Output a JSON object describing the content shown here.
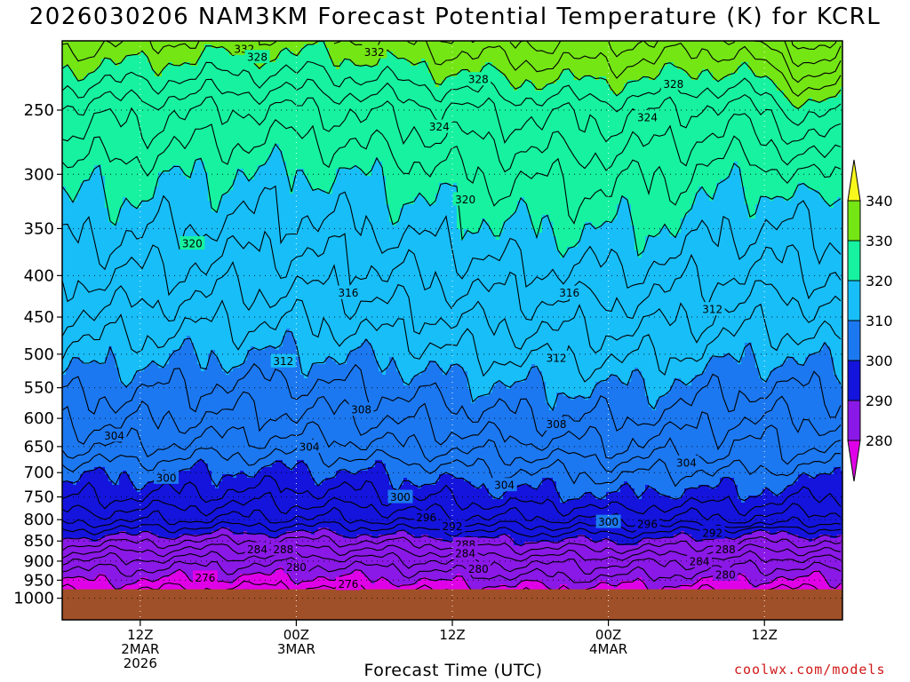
{
  "chart_data": {
    "type": "contour",
    "title": "2026030206 NAM3KM Forecast Potential Temperature (K) for KCRL",
    "xlabel": "Forecast Time (UTC)",
    "ylabel": "",
    "credit": "coolwx.com/models",
    "y_axis": {
      "scale": "log-pressure",
      "inverted": true,
      "range": [
        1000,
        200
      ],
      "ticks": [
        "250",
        "300",
        "350",
        "400",
        "450",
        "500",
        "550",
        "600",
        "650",
        "700",
        "750",
        "800",
        "850",
        "900",
        "950",
        "1000"
      ],
      "grid": "dotted"
    },
    "x_axis": {
      "range": [
        "2026-03-02T06Z",
        "2026-03-04T18Z"
      ],
      "ticks": [
        {
          "hour": 6,
          "lines": [
            "12Z",
            "2MAR",
            "2026"
          ]
        },
        {
          "hour": 18,
          "lines": [
            "00Z",
            "3MAR"
          ]
        },
        {
          "hour": 30,
          "lines": [
            "12Z"
          ]
        },
        {
          "hour": 42,
          "lines": [
            "00Z",
            "4MAR"
          ]
        },
        {
          "hour": 54,
          "lines": [
            "12Z"
          ]
        }
      ],
      "grid": "dotted"
    },
    "colorbar": {
      "ticks": [
        "280",
        "290",
        "300",
        "310",
        "320",
        "330",
        "340"
      ],
      "bands": [
        {
          "range": "<280",
          "color": "#e000e8"
        },
        {
          "range": "280-290",
          "color": "#8a18e6"
        },
        {
          "range": "290-300",
          "color": "#1414dc"
        },
        {
          "range": "300-310",
          "color": "#1c78f0"
        },
        {
          "range": "310-320",
          "color": "#18bef8"
        },
        {
          "range": "320-330",
          "color": "#16f2a0"
        },
        {
          "range": "330-340",
          "color": "#74e614"
        },
        {
          "range": ">340",
          "color": "#f8f81c"
        }
      ],
      "extend": "both"
    },
    "ground_color": "#a05028",
    "contour_interval": 2,
    "contour_labels": [
      {
        "value": "332",
        "hour": 14,
        "pressure": 210
      },
      {
        "value": "328",
        "hour": 15,
        "pressure": 215
      },
      {
        "value": "332",
        "hour": 24,
        "pressure": 212
      },
      {
        "value": "328",
        "hour": 32,
        "pressure": 229
      },
      {
        "value": "328",
        "hour": 47,
        "pressure": 232
      },
      {
        "value": "324",
        "hour": 29,
        "pressure": 262
      },
      {
        "value": "324",
        "hour": 45,
        "pressure": 255
      },
      {
        "value": "320",
        "hour": 31,
        "pressure": 322
      },
      {
        "value": "320",
        "hour": 10,
        "pressure": 365
      },
      {
        "value": "316",
        "hour": 22,
        "pressure": 420
      },
      {
        "value": "316",
        "hour": 39,
        "pressure": 420
      },
      {
        "value": "312",
        "hour": 50,
        "pressure": 440
      },
      {
        "value": "312",
        "hour": 17,
        "pressure": 510
      },
      {
        "value": "312",
        "hour": 38,
        "pressure": 505
      },
      {
        "value": "308",
        "hour": 23,
        "pressure": 585
      },
      {
        "value": "308",
        "hour": 38,
        "pressure": 610
      },
      {
        "value": "304",
        "hour": 4,
        "pressure": 630
      },
      {
        "value": "304",
        "hour": 19,
        "pressure": 650
      },
      {
        "value": "304",
        "hour": 34,
        "pressure": 725
      },
      {
        "value": "304",
        "hour": 48,
        "pressure": 680
      },
      {
        "value": "300",
        "hour": 8,
        "pressure": 710
      },
      {
        "value": "300",
        "hour": 26,
        "pressure": 750
      },
      {
        "value": "300",
        "hour": 42,
        "pressure": 805
      },
      {
        "value": "296",
        "hour": 28,
        "pressure": 795
      },
      {
        "value": "296",
        "hour": 45,
        "pressure": 810
      },
      {
        "value": "292",
        "hour": 30,
        "pressure": 815
      },
      {
        "value": "292",
        "hour": 50,
        "pressure": 830
      },
      {
        "value": "288",
        "hour": 31,
        "pressure": 858
      },
      {
        "value": "288",
        "hour": 51,
        "pressure": 870
      },
      {
        "value": "284",
        "hour": 15,
        "pressure": 870
      },
      {
        "value": "288",
        "hour": 17,
        "pressure": 870
      },
      {
        "value": "284",
        "hour": 31,
        "pressure": 880
      },
      {
        "value": "284",
        "hour": 49,
        "pressure": 900
      },
      {
        "value": "280",
        "hour": 18,
        "pressure": 915
      },
      {
        "value": "280",
        "hour": 32,
        "pressure": 920
      },
      {
        "value": "280",
        "hour": 51,
        "pressure": 935
      },
      {
        "value": "276",
        "hour": 11,
        "pressure": 943
      },
      {
        "value": "276",
        "hour": 22,
        "pressure": 960
      }
    ]
  }
}
